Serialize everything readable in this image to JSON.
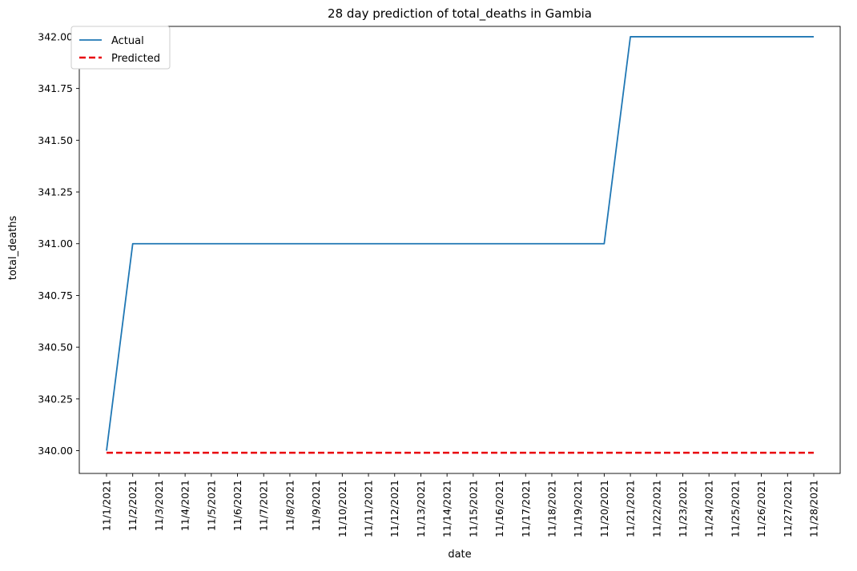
{
  "chart_data": {
    "type": "line",
    "title": "28 day prediction of total_deaths in Gambia",
    "xlabel": "date",
    "ylabel": "total_deaths",
    "categories": [
      "11/1/2021",
      "11/2/2021",
      "11/3/2021",
      "11/4/2021",
      "11/5/2021",
      "11/6/2021",
      "11/7/2021",
      "11/8/2021",
      "11/9/2021",
      "11/10/2021",
      "11/11/2021",
      "11/12/2021",
      "11/13/2021",
      "11/14/2021",
      "11/15/2021",
      "11/16/2021",
      "11/17/2021",
      "11/18/2021",
      "11/19/2021",
      "11/20/2021",
      "11/21/2021",
      "11/22/2021",
      "11/23/2021",
      "11/24/2021",
      "11/25/2021",
      "11/26/2021",
      "11/27/2021",
      "11/28/2021"
    ],
    "ylim": [
      339.89,
      342.05
    ],
    "yticks": [
      "340.00",
      "340.25",
      "340.50",
      "340.75",
      "341.00",
      "341.25",
      "341.50",
      "341.75",
      "342.00"
    ],
    "ytick_values": [
      340.0,
      340.25,
      340.5,
      340.75,
      341.0,
      341.25,
      341.5,
      341.75,
      342.0
    ],
    "grid": false,
    "legend_position": "top-left",
    "series": [
      {
        "name": "Actual",
        "color": "#1f77b4",
        "style": "solid",
        "values": [
          340,
          341,
          341,
          341,
          341,
          341,
          341,
          341,
          341,
          341,
          341,
          341,
          341,
          341,
          341,
          341,
          341,
          341,
          341,
          341,
          342,
          342,
          342,
          342,
          342,
          342,
          342,
          342
        ]
      },
      {
        "name": "Predicted",
        "color": "#e8000b",
        "style": "dashed",
        "values": [
          339.99,
          339.99,
          339.99,
          339.99,
          339.99,
          339.99,
          339.99,
          339.99,
          339.99,
          339.99,
          339.99,
          339.99,
          339.99,
          339.99,
          339.99,
          339.99,
          339.99,
          339.99,
          339.99,
          339.99,
          339.99,
          339.99,
          339.99,
          339.99,
          339.99,
          339.99,
          339.99,
          339.99
        ]
      }
    ]
  }
}
